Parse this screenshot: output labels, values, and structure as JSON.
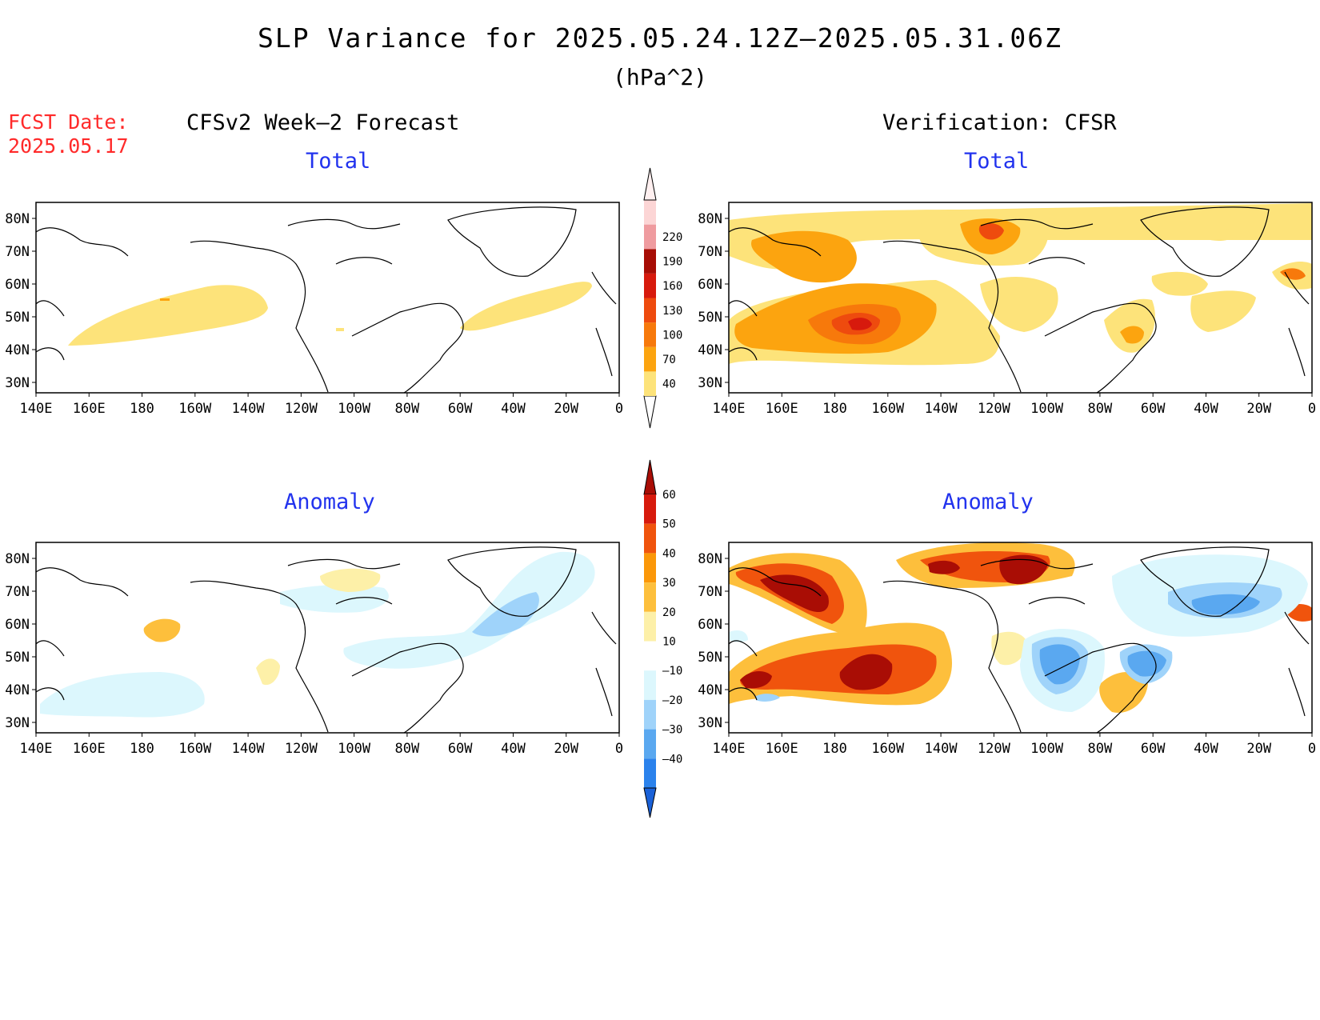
{
  "title": "SLP Variance for 2025.05.24.12Z–2025.05.31.06Z",
  "units": "(hPa^2)",
  "fcst_date": {
    "label": "FCST Date:",
    "value": "2025.05.17",
    "color": "#ff2a2a"
  },
  "column_headings": {
    "forecast": "CFSv2 Week–2 Forecast",
    "verification": "Verification: CFSR"
  },
  "panel_titles": {
    "total": "Total",
    "anomaly": "Anomaly"
  },
  "lat_labels": [
    "80N",
    "70N",
    "60N",
    "50N",
    "40N",
    "30N"
  ],
  "lon_labels": [
    "140E",
    "160E",
    "180",
    "160W",
    "140W",
    "120W",
    "100W",
    "80W",
    "60W",
    "40W",
    "20W",
    "0"
  ],
  "total_colorbar": {
    "levels": [
      "40",
      "70",
      "100",
      "130",
      "160",
      "190",
      "220"
    ],
    "colors": [
      "#fde37a",
      "#fca40f",
      "#f7790b",
      "#ee4b0e",
      "#d71a0d",
      "#a70d05",
      "#ef9b9f",
      "#fcd5d5",
      "#fff0f0"
    ]
  },
  "anomaly_colorbar": {
    "levels": [
      "60",
      "50",
      "40",
      "30",
      "20",
      "10",
      "–10",
      "–20",
      "–30",
      "–40"
    ],
    "colors": [
      "#a90d05",
      "#d71a0d",
      "#f0540d",
      "#fb9708",
      "#fdbf3c",
      "#fdf0a8",
      "#ffffff",
      "#dcf7fd",
      "#9fd3fa",
      "#5aa8f0",
      "#2b82ec",
      "#1a61d8"
    ]
  }
}
